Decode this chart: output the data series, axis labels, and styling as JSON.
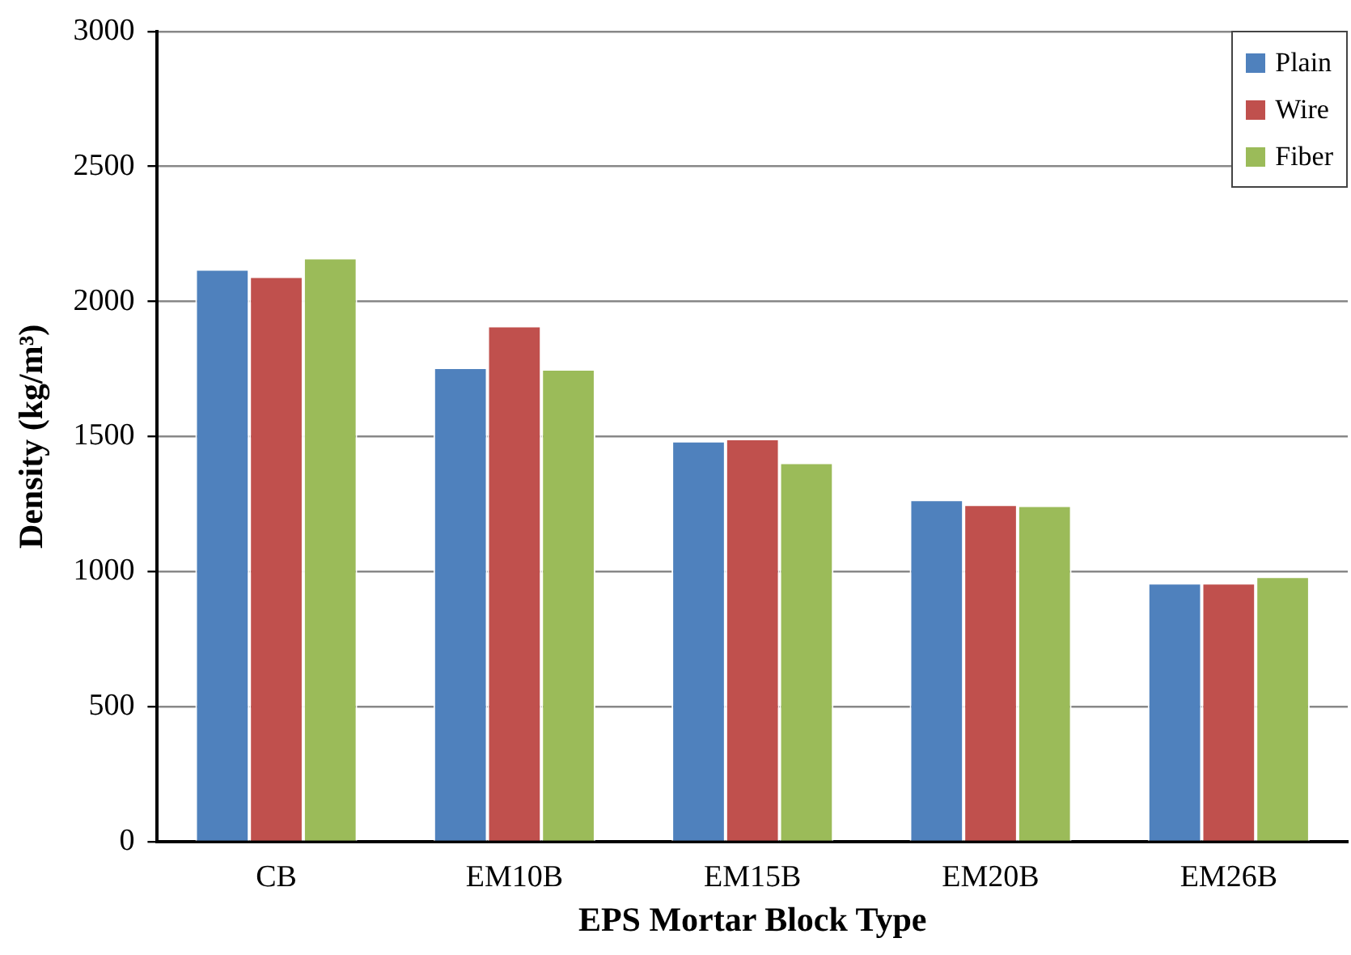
{
  "chart_data": {
    "type": "bar",
    "xlabel": "EPS Mortar Block Type",
    "ylabel": "Density (kg/m³)",
    "categories": [
      "CB",
      "EM10B",
      "EM15B",
      "EM20B",
      "EM26B"
    ],
    "series": [
      {
        "name": "Plain",
        "color": "#4f81bd",
        "values": [
          2120,
          1756,
          1484,
          1267,
          958
        ]
      },
      {
        "name": "Wire",
        "color": "#c0504d",
        "values": [
          2093,
          1910,
          1492,
          1249,
          958
        ]
      },
      {
        "name": "Fiber",
        "color": "#9bbb59",
        "values": [
          2162,
          1750,
          1404,
          1245,
          982
        ]
      }
    ],
    "ylim": [
      0,
      3000
    ],
    "yticks": [
      0,
      500,
      1000,
      1500,
      2000,
      2500,
      3000
    ],
    "grid": "y",
    "legend": "top right"
  }
}
